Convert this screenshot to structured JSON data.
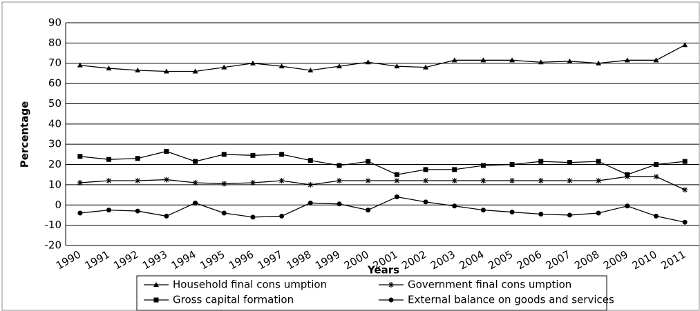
{
  "chart_data": {
    "type": "line",
    "x_label": "Years",
    "y_label": "Percentage",
    "categories": [
      "1990",
      "1991",
      "1992",
      "1993",
      "1994",
      "1995",
      "1996",
      "1997",
      "1998",
      "1999",
      "2000",
      "2001",
      "2002",
      "2003",
      "2004",
      "2005",
      "2006",
      "2007",
      "2008",
      "2009",
      "2010",
      "2011"
    ],
    "series": [
      {
        "name": "Household final cons umption",
        "color": "#000000",
        "marker": "triangle",
        "values": [
          69,
          67.5,
          66.5,
          66,
          66,
          68,
          70,
          68.5,
          66.5,
          68.5,
          70.5,
          68.5,
          68,
          71.5,
          71.5,
          71.5,
          70.5,
          71,
          70,
          71.5,
          71.5,
          79
        ]
      },
      {
        "name": "Government final cons umption",
        "color": "#000000",
        "marker": "star",
        "values": [
          11,
          12,
          12,
          12.5,
          11,
          10.5,
          11,
          12,
          10,
          12,
          12,
          12,
          12,
          12,
          12,
          12,
          12,
          12,
          12,
          14,
          14,
          7.5
        ]
      },
      {
        "name": "Gross capital formation",
        "color": "#000000",
        "marker": "square",
        "values": [
          24,
          22.5,
          23,
          26.5,
          21.5,
          25,
          24.5,
          25,
          22,
          19.5,
          21.5,
          15,
          17.5,
          17.5,
          19.5,
          20,
          21.5,
          21,
          21.5,
          15,
          20,
          21.5
        ]
      },
      {
        "name": "External balance on goods and services",
        "color": "#000000",
        "marker": "circle",
        "values": [
          -4,
          -2.5,
          -3,
          -5.5,
          1,
          -4,
          -6,
          -5.5,
          1,
          0.5,
          -2.5,
          4,
          1.5,
          -0.5,
          -2.5,
          -3.5,
          -4.5,
          -5,
          -4,
          -0.5,
          -5.5,
          -8.5
        ]
      }
    ],
    "ylim": [
      -20,
      90
    ],
    "yticks": [
      -20,
      -10,
      0,
      10,
      20,
      30,
      40,
      50,
      60,
      70,
      80,
      90
    ],
    "grid": true,
    "legend": "bottom"
  }
}
